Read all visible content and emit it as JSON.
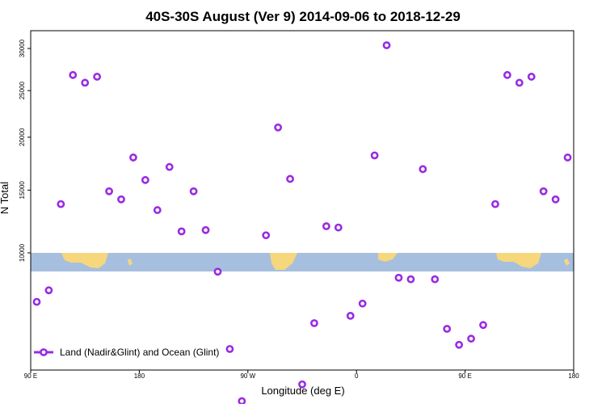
{
  "chart_data": {
    "type": "scatter",
    "title": "40S-30S August (Ver 9)   2014-09-06 to 2018-12-29",
    "xlabel": "Longitude (deg E)",
    "ylabel": "N Total",
    "xlim": [
      0,
      405
    ],
    "x_ticks": [
      {
        "value": 0,
        "label": "90 E"
      },
      {
        "value": 90,
        "label": "180"
      },
      {
        "value": 180,
        "label": "90 W"
      },
      {
        "value": 270,
        "label": "0"
      },
      {
        "value": 360,
        "label": "90 E"
      },
      {
        "value": 450,
        "label": "180"
      }
    ],
    "y_scale": "sqrt",
    "ylim": [
      600,
      32000
    ],
    "y_ticks": [
      10000,
      15000,
      20000,
      25000,
      30000
    ],
    "legend": {
      "position": "bottom-left",
      "label": "Land (Nadir&Glint) and Ocean (Glint)"
    },
    "band_label_range": [
      9200,
      10000
    ],
    "series": [
      {
        "name": "Land (Nadir&Glint) and Ocean (Glint)",
        "color": "#9a2be2",
        "marker": "open-circle",
        "points": [
          {
            "x": 5,
            "y": 6800
          },
          {
            "x": 15,
            "y": 7500
          },
          {
            "x": 25,
            "y": 13800
          },
          {
            "x": 35,
            "y": 26800
          },
          {
            "x": 45,
            "y": 25900
          },
          {
            "x": 55,
            "y": 26600
          },
          {
            "x": 65,
            "y": 14900
          },
          {
            "x": 75,
            "y": 14200
          },
          {
            "x": 85,
            "y": 18000
          },
          {
            "x": 95,
            "y": 15900
          },
          {
            "x": 105,
            "y": 13300
          },
          {
            "x": 115,
            "y": 17100
          },
          {
            "x": 125,
            "y": 11600
          },
          {
            "x": 135,
            "y": 14900
          },
          {
            "x": 145,
            "y": 11700
          },
          {
            "x": 155,
            "y": 8700
          },
          {
            "x": 165,
            "y": 4300
          },
          {
            "x": 175,
            "y": 2200
          },
          {
            "x": 185,
            "y": 1700
          },
          {
            "x": 195,
            "y": 11300
          },
          {
            "x": 205,
            "y": 21000
          },
          {
            "x": 215,
            "y": 16000
          },
          {
            "x": 225,
            "y": 2800
          },
          {
            "x": 235,
            "y": 5600
          },
          {
            "x": 245,
            "y": 12000
          },
          {
            "x": 255,
            "y": 11900
          },
          {
            "x": 265,
            "y": 6000
          },
          {
            "x": 275,
            "y": 6700
          },
          {
            "x": 285,
            "y": 18200
          },
          {
            "x": 295,
            "y": 30400
          },
          {
            "x": 305,
            "y": 8300
          },
          {
            "x": 315,
            "y": 8200
          },
          {
            "x": 325,
            "y": 16900
          },
          {
            "x": 335,
            "y": 8200
          },
          {
            "x": 345,
            "y": 5300
          },
          {
            "x": 355,
            "y": 4500
          },
          {
            "x": 365,
            "y": 4800
          },
          {
            "x": 375,
            "y": 5500
          },
          {
            "x": 385,
            "y": 13800
          },
          {
            "x": 395,
            "y": 26800
          },
          {
            "x": 405,
            "y": 25900
          }
        ]
      }
    ]
  },
  "extra_points": [
    {
      "x": 415,
      "y": 26600
    },
    {
      "x": 425,
      "y": 14900
    },
    {
      "x": 435,
      "y": 14200
    },
    {
      "x": 445,
      "y": 18000
    }
  ]
}
